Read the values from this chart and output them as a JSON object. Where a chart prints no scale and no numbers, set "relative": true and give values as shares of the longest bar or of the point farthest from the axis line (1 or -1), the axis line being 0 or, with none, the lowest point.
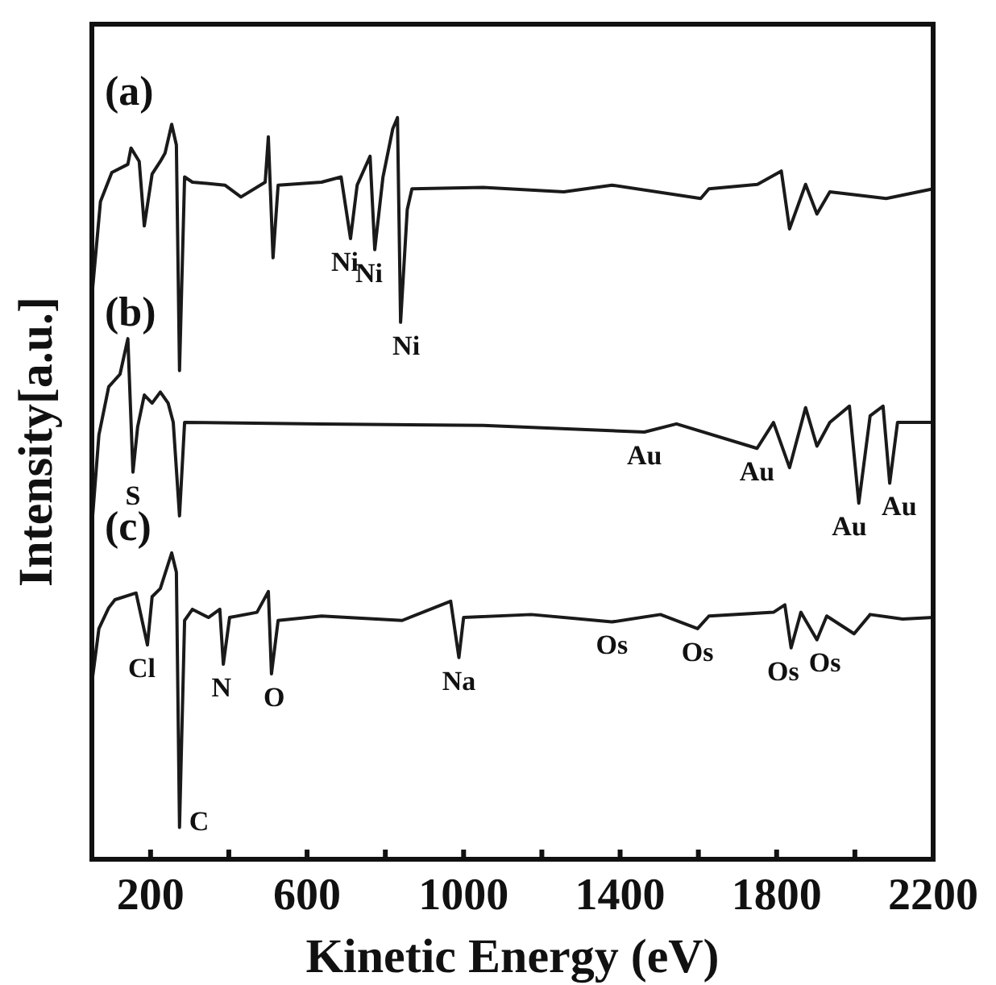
{
  "chart_data": {
    "type": "line",
    "relative": true,
    "xlabel": "Kinetic Energy (eV)",
    "ylabel": "Intensity[a.u.]",
    "xlim": [
      50,
      2200
    ],
    "xticks": [
      200,
      {
        "value": 400,
        "label": null
      },
      600,
      {
        "value": 800,
        "label": null
      },
      1000,
      {
        "value": 1200,
        "label": null
      },
      1400,
      {
        "value": 1600,
        "label": null
      },
      1800,
      {
        "value": 2000,
        "label": null
      },
      2200
    ],
    "tick_labels": "x",
    "grid": false,
    "legend": false,
    "marker": "none",
    "line_style": "solid",
    "series": [
      {
        "name": "(a)",
        "color": "#1a1a1a",
        "x": [
          52,
          72,
          101,
          142,
          150,
          171,
          184,
          204,
          225,
          237,
          254,
          266,
          274,
          287,
          307,
          390,
          431,
          493,
          501,
          513,
          526,
          637,
          687,
          711,
          728,
          761,
          773,
          794,
          819,
          831,
          839,
          856,
          868,
          1050,
          1256,
          1379,
          1606,
          1627,
          1751,
          1812,
          1833,
          1874,
          1903,
          1936,
          2080,
          2200
        ],
        "values": [
          0.77,
          0.887,
          0.926,
          0.937,
          0.959,
          0.941,
          0.854,
          0.924,
          0.941,
          0.952,
          0.991,
          0.963,
          0.659,
          0.92,
          0.913,
          0.909,
          0.893,
          0.913,
          0.974,
          0.811,
          0.909,
          0.913,
          0.92,
          0.837,
          0.909,
          0.948,
          0.822,
          0.92,
          0.985,
          1.0,
          0.724,
          0.876,
          0.904,
          0.906,
          0.9,
          0.909,
          0.891,
          0.904,
          0.91,
          0.928,
          0.85,
          0.91,
          0.87,
          0.9,
          0.891,
          0.904
        ]
      },
      {
        "name": "(b)",
        "color": "#1a1a1a",
        "x": [
          52,
          68,
          93,
          122,
          142,
          155,
          167,
          184,
          204,
          225,
          245,
          258,
          274,
          287,
          637,
          1050,
          1462,
          1544,
          1750,
          1792,
          1833,
          1874,
          1903,
          1936,
          1986,
          2010,
          2039,
          2072,
          2089,
          2109,
          2200
        ],
        "values": [
          0.463,
          0.572,
          0.637,
          0.654,
          0.702,
          0.522,
          0.583,
          0.626,
          0.615,
          0.63,
          0.615,
          0.589,
          0.463,
          0.589,
          0.587,
          0.585,
          0.576,
          0.587,
          0.554,
          0.589,
          0.528,
          0.609,
          0.557,
          0.589,
          0.611,
          0.48,
          0.598,
          0.611,
          0.507,
          0.589,
          0.589
        ]
      },
      {
        "name": "(c)",
        "color": "#1a1a1a",
        "x": [
          52,
          68,
          93,
          109,
          163,
          192,
          204,
          225,
          254,
          266,
          274,
          287,
          307,
          348,
          377,
          386,
          402,
          472,
          501,
          509,
          526,
          637,
          843,
          967,
          988,
          1000,
          1173,
          1379,
          1503,
          1598,
          1627,
          1792,
          1821,
          1837,
          1862,
          1903,
          1928,
          1998,
          2039,
          2122,
          2200
        ],
        "values": [
          0.246,
          0.311,
          0.339,
          0.35,
          0.359,
          0.289,
          0.354,
          0.365,
          0.413,
          0.387,
          0.043,
          0.322,
          0.337,
          0.326,
          0.337,
          0.263,
          0.326,
          0.333,
          0.361,
          0.25,
          0.322,
          0.328,
          0.322,
          0.348,
          0.272,
          0.326,
          0.33,
          0.32,
          0.33,
          0.311,
          0.328,
          0.333,
          0.343,
          0.285,
          0.333,
          0.296,
          0.328,
          0.304,
          0.33,
          0.324,
          0.326
        ]
      }
    ],
    "annotations": [
      {
        "text": "Ni",
        "x": 711,
        "y": 0.837
      },
      {
        "text": "Ni",
        "x": 773,
        "y": 0.822
      },
      {
        "text": "Ni",
        "x": 839,
        "y": 0.724
      },
      {
        "text": "S",
        "x": 155,
        "y": 0.522
      },
      {
        "text": "Au",
        "x": 1462,
        "y": 0.576
      },
      {
        "text": "Au",
        "x": 1750,
        "y": 0.554
      },
      {
        "text": "Au",
        "x": 2010,
        "y": 0.48
      },
      {
        "text": "Au",
        "x": 2089,
        "y": 0.507
      },
      {
        "text": "Cl",
        "x": 192,
        "y": 0.289
      },
      {
        "text": "C",
        "x": 274,
        "y": 0.043
      },
      {
        "text": "N",
        "x": 386,
        "y": 0.263
      },
      {
        "text": "O",
        "x": 509,
        "y": 0.25
      },
      {
        "text": "Na",
        "x": 988,
        "y": 0.272
      },
      {
        "text": "Os",
        "x": 1379,
        "y": 0.32
      },
      {
        "text": "Os",
        "x": 1598,
        "y": 0.311
      },
      {
        "text": "Os",
        "x": 1837,
        "y": 0.285
      },
      {
        "text": "Os",
        "x": 1903,
        "y": 0.296
      }
    ]
  }
}
